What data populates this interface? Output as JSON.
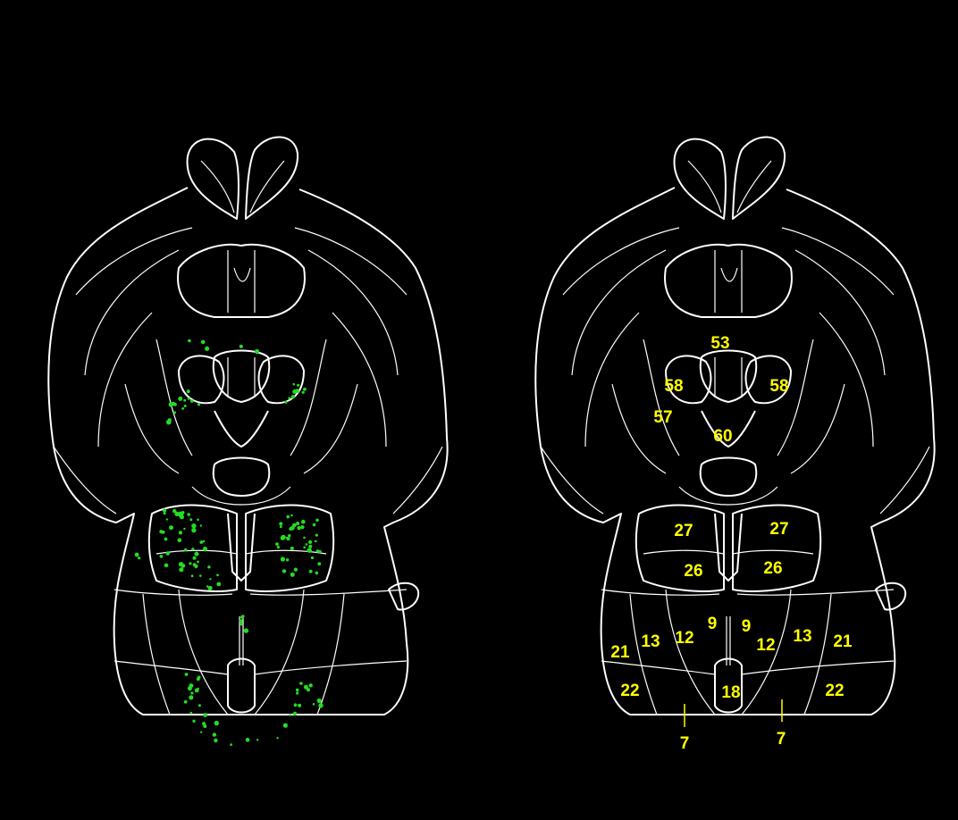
{
  "colors": {
    "background": "#000000",
    "outline": "#ffffff",
    "label": "#ffff00",
    "cell_dots": "#22dd22"
  },
  "right_panel": {
    "labels": [
      {
        "id": "l53",
        "text": "53"
      },
      {
        "id": "l58a",
        "text": "58"
      },
      {
        "id": "l58b",
        "text": "58"
      },
      {
        "id": "l57",
        "text": "57"
      },
      {
        "id": "l60",
        "text": "60"
      },
      {
        "id": "l27a",
        "text": "27"
      },
      {
        "id": "l27b",
        "text": "27"
      },
      {
        "id": "l26a",
        "text": "26"
      },
      {
        "id": "l26b",
        "text": "26"
      },
      {
        "id": "l9a",
        "text": "9"
      },
      {
        "id": "l9b",
        "text": "9"
      },
      {
        "id": "l12a",
        "text": "12"
      },
      {
        "id": "l12b",
        "text": "12"
      },
      {
        "id": "l13a",
        "text": "13"
      },
      {
        "id": "l13b",
        "text": "13"
      },
      {
        "id": "l21a",
        "text": "21"
      },
      {
        "id": "l21b",
        "text": "21"
      },
      {
        "id": "l22a",
        "text": "22"
      },
      {
        "id": "l22b",
        "text": "22"
      },
      {
        "id": "l18",
        "text": "18"
      },
      {
        "id": "l7a",
        "text": "7"
      },
      {
        "id": "l7b",
        "text": "7"
      }
    ]
  }
}
